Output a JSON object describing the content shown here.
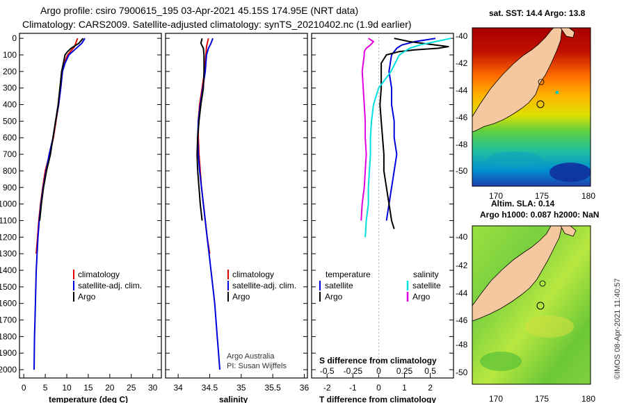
{
  "titles": {
    "line1": "Argo profile: csiro 7900615_195 03-Apr-2021 45.15S 174.95E (NRT data)",
    "line2": "Climatology: CARS2009. Satellite-adjusted climatology: synTS_20210402.nc (1.9d earlier)"
  },
  "depth_ticks": [
    "0",
    "100",
    "200",
    "300",
    "400",
    "500",
    "600",
    "700",
    "800",
    "900",
    "1000",
    "1100",
    "1200",
    "1300",
    "1400",
    "1500",
    "1600",
    "1700",
    "1800",
    "1900",
    "2000"
  ],
  "chart_data": [
    {
      "type": "line",
      "title": "Temperature profile",
      "xlabel": "temperature (deg C)",
      "ylabel": "depth",
      "xlim": [
        -1,
        32
      ],
      "ylim": [
        2050,
        -30
      ],
      "xticks": [
        "0",
        "5",
        "10",
        "15",
        "20",
        "25",
        "30"
      ],
      "legend": [
        "climatology",
        "satellite-adj. clim.",
        "Argo"
      ],
      "series": [
        {
          "name": "climatology",
          "color": "#e00000",
          "depth": [
            0,
            50,
            100,
            150,
            200,
            300,
            400,
            500,
            600,
            700,
            800,
            900,
            1000,
            1100,
            1200,
            1300
          ],
          "values": [
            12.5,
            11.8,
            10.2,
            9.4,
            9.0,
            8.6,
            8.1,
            7.5,
            6.9,
            6.0,
            5.0,
            4.4,
            3.9,
            3.5,
            3.2,
            2.9
          ]
        },
        {
          "name": "satellite-adj. clim.",
          "color": "#0000dd",
          "depth": [
            0,
            30,
            60,
            100,
            150,
            200,
            300,
            400,
            500,
            600,
            700,
            800,
            900,
            1000,
            1100,
            1200,
            1300,
            1400,
            1500,
            1600,
            1700,
            1800,
            1900,
            2000
          ],
          "values": [
            14.2,
            13.5,
            12.2,
            10.5,
            9.6,
            9.0,
            8.6,
            8.1,
            7.4,
            6.8,
            5.9,
            5.2,
            4.5,
            4.0,
            3.6,
            3.3,
            3.1,
            2.9,
            2.8,
            2.7,
            2.6,
            2.5,
            2.45,
            2.4
          ]
        },
        {
          "name": "Argo",
          "color": "#000000",
          "depth": [
            0,
            30,
            60,
            80,
            100,
            150,
            200,
            300,
            400,
            500,
            600,
            700,
            800,
            900,
            1000,
            1100
          ],
          "values": [
            13.8,
            12.8,
            11.0,
            10.2,
            9.6,
            9.2,
            8.8,
            8.4,
            8.0,
            7.4,
            6.8,
            6.2,
            5.3,
            4.6,
            4.1,
            3.7
          ]
        }
      ]
    },
    {
      "type": "line",
      "title": "Salinity profile",
      "xlabel": "salinity",
      "ylabel": "depth",
      "xlim": [
        33.8,
        36.05
      ],
      "ylim": [
        2050,
        -30
      ],
      "xticks": [
        "34",
        "34.5",
        "35",
        "35.5",
        "36"
      ],
      "legend": [
        "climatology",
        "satellite-adj. clim.",
        "Argo"
      ],
      "series": [
        {
          "name": "climatology",
          "color": "#e00000",
          "depth": [
            0,
            50,
            100,
            200,
            300,
            400,
            500,
            600,
            700,
            800,
            900,
            1000,
            1100,
            1200,
            1300
          ],
          "values": [
            34.48,
            34.45,
            34.44,
            34.42,
            34.38,
            34.34,
            34.32,
            34.32,
            34.33,
            34.35,
            34.37,
            34.4,
            34.43,
            34.46,
            34.5
          ]
        },
        {
          "name": "satellite-adj. clim.",
          "color": "#0000dd",
          "depth": [
            0,
            30,
            60,
            100,
            200,
            300,
            400,
            500,
            600,
            700,
            800,
            900,
            1000,
            1100,
            1200,
            1300,
            1400,
            1500,
            1600,
            1700,
            1800,
            1900,
            2000
          ],
          "values": [
            34.55,
            34.52,
            34.48,
            34.45,
            34.43,
            34.39,
            34.35,
            34.32,
            34.31,
            34.32,
            34.34,
            34.37,
            34.4,
            34.43,
            34.46,
            34.49,
            34.52,
            34.55,
            34.58,
            34.6,
            34.62,
            34.64,
            34.66
          ]
        },
        {
          "name": "Argo",
          "color": "#000000",
          "depth": [
            0,
            30,
            60,
            100,
            200,
            300,
            400,
            500,
            600,
            700,
            800,
            900,
            1000,
            1100
          ],
          "values": [
            34.38,
            34.36,
            34.4,
            34.41,
            34.41,
            34.4,
            34.36,
            34.33,
            34.31,
            34.3,
            34.31,
            34.33,
            34.35,
            34.38
          ]
        }
      ]
    },
    {
      "type": "line",
      "title": "Difference from climatology",
      "xlabel": "T difference from climatology",
      "xlabel2": "S difference from climatology",
      "ylabel": "depth",
      "xlim": [
        -2.6,
        2.9
      ],
      "ylim": [
        2050,
        -30
      ],
      "xticks_t": [
        "-2",
        "-1",
        "0",
        "1",
        "2"
      ],
      "xticks_s": [
        "-0.5",
        "-0.25",
        "0",
        "0.25",
        "0.5"
      ],
      "legend_headers": [
        "temperature",
        "salinity"
      ],
      "legend": [
        "satellite",
        "Argo",
        "satellite",
        "Argo"
      ],
      "series": [
        {
          "name": "temperature satellite",
          "color": "#0000dd",
          "depth": [
            0,
            20,
            40,
            60,
            80,
            100,
            150,
            200,
            300,
            400,
            500,
            600,
            700,
            800,
            900,
            1000,
            1100
          ],
          "values": [
            2.2,
            1.4,
            0.9,
            0.7,
            0.6,
            0.5,
            0.45,
            0.4,
            0.5,
            0.5,
            0.6,
            0.6,
            0.7,
            0.6,
            0.5,
            0.4,
            0.3
          ]
        },
        {
          "name": "temperature Argo",
          "color": "#000000",
          "depth": [
            0,
            20,
            40,
            50,
            60,
            70,
            80,
            100,
            150,
            200,
            300,
            400,
            500,
            600,
            700,
            800,
            900,
            1000,
            1100,
            1150
          ],
          "values": [
            0.6,
            1.2,
            2.2,
            2.7,
            2.3,
            1.4,
            0.8,
            0.3,
            0.1,
            0.1,
            0.1,
            0.05,
            0.1,
            0.15,
            0.2,
            0.2,
            0.3,
            0.4,
            0.5,
            0.6
          ]
        },
        {
          "name": "salinity satellite",
          "color": "#00e0e0",
          "depth": [
            0,
            20,
            40,
            60,
            80,
            100,
            200,
            300,
            400,
            500,
            600,
            700,
            800,
            900,
            1000,
            1100,
            1200
          ],
          "values": [
            0.7,
            0.55,
            0.4,
            0.3,
            0.25,
            0.2,
            0.12,
            0.0,
            -0.05,
            -0.07,
            -0.08,
            -0.08,
            -0.09,
            -0.1,
            -0.1,
            -0.12,
            -0.13
          ]
        },
        {
          "name": "salinity Argo",
          "color": "#e000e0",
          "depth": [
            0,
            20,
            40,
            60,
            80,
            100,
            200,
            300,
            400,
            500,
            600,
            700,
            800,
            900,
            1000,
            1100
          ],
          "values": [
            -0.1,
            -0.05,
            -0.08,
            -0.12,
            -0.14,
            -0.14,
            -0.16,
            -0.15,
            -0.14,
            -0.13,
            -0.13,
            -0.12,
            -0.13,
            -0.14,
            -0.16,
            -0.17
          ]
        }
      ]
    }
  ],
  "credits": {
    "line1": "Argo Australia",
    "line2": "PI: Susan Wijffels"
  },
  "map_top": {
    "title": "sat. SST: 14.4 Argo: 13.8",
    "lat_ticks": [
      "-40",
      "-42",
      "-44",
      "-46",
      "-48",
      "-50"
    ],
    "lon_ticks": [
      "170",
      "175",
      "180"
    ]
  },
  "map_bottom": {
    "title1": "Altim. SLA: 0.14",
    "title2": "Argo h1000: 0.087 h2000: NaN",
    "lat_ticks": [
      "-40",
      "-42",
      "-44",
      "-46",
      "-48",
      "-50"
    ],
    "lon_ticks": [
      "170",
      "175",
      "180"
    ]
  },
  "side_stamp": "©IMOS 08-Apr-2021 11:40:57",
  "colors": {
    "sst_hot": "#b00000",
    "land": "#f5c8a0",
    "axis": "#000000"
  }
}
